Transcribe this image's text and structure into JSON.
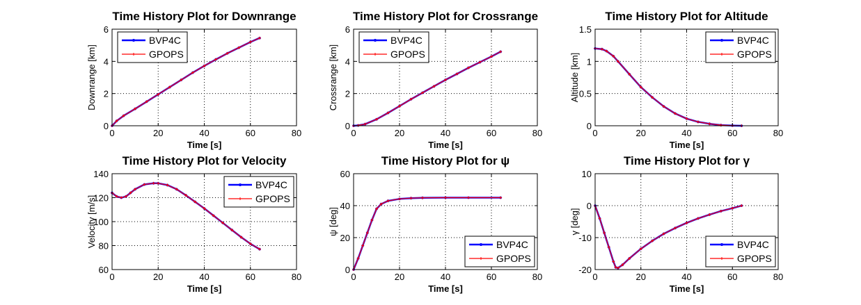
{
  "chart_data": [
    {
      "type": "line",
      "title": "Time History Plot for Downrange",
      "xlabel": "Time [s]",
      "ylabel": "Downrange [km]",
      "xlim": [
        0,
        80
      ],
      "ylim": [
        0,
        6
      ],
      "xticks": [
        "0",
        "20",
        "40",
        "60",
        "80"
      ],
      "yticks": [
        "0",
        "2",
        "4",
        "6"
      ],
      "grid": true,
      "legend_position": "top-left",
      "series": [
        {
          "name": "BVP4C",
          "color": "#0000ff",
          "marker": "dot",
          "x": [
            0,
            2,
            5,
            10,
            15,
            20,
            25,
            30,
            35,
            40,
            45,
            50,
            55,
            60,
            64
          ],
          "y": [
            0,
            0.3,
            0.62,
            1.05,
            1.5,
            1.95,
            2.4,
            2.85,
            3.3,
            3.72,
            4.12,
            4.5,
            4.85,
            5.2,
            5.45
          ]
        },
        {
          "name": "GPOPS",
          "color": "#ff0000",
          "marker": "plus",
          "x": [
            0,
            2,
            5,
            10,
            15,
            20,
            25,
            30,
            35,
            40,
            45,
            50,
            55,
            60,
            64
          ],
          "y": [
            0,
            0.3,
            0.62,
            1.05,
            1.5,
            1.95,
            2.4,
            2.85,
            3.3,
            3.72,
            4.12,
            4.5,
            4.85,
            5.2,
            5.45
          ]
        }
      ]
    },
    {
      "type": "line",
      "title": "Time History Plot for Crossrange",
      "xlabel": "Time [s]",
      "ylabel": "Crossrange [km]",
      "xlim": [
        0,
        80
      ],
      "ylim": [
        0,
        6
      ],
      "xticks": [
        "0",
        "20",
        "40",
        "60",
        "80"
      ],
      "yticks": [
        "0",
        "2",
        "4",
        "6"
      ],
      "grid": true,
      "legend_position": "top-left",
      "series": [
        {
          "name": "BVP4C",
          "color": "#0000ff",
          "marker": "dot",
          "x": [
            0,
            2,
            5,
            10,
            15,
            20,
            25,
            30,
            35,
            40,
            45,
            50,
            55,
            60,
            64
          ],
          "y": [
            0,
            0.02,
            0.1,
            0.4,
            0.8,
            1.22,
            1.65,
            2.05,
            2.45,
            2.85,
            3.22,
            3.6,
            3.95,
            4.3,
            4.6
          ]
        },
        {
          "name": "GPOPS",
          "color": "#ff0000",
          "marker": "plus",
          "x": [
            0,
            2,
            5,
            10,
            15,
            20,
            25,
            30,
            35,
            40,
            45,
            50,
            55,
            60,
            64
          ],
          "y": [
            0,
            0.02,
            0.1,
            0.4,
            0.8,
            1.22,
            1.65,
            2.05,
            2.45,
            2.85,
            3.22,
            3.6,
            3.95,
            4.3,
            4.6
          ]
        }
      ]
    },
    {
      "type": "line",
      "title": "Time History Plot for Altitude",
      "xlabel": "Time [s]",
      "ylabel": "Altitude [km]",
      "xlim": [
        0,
        80
      ],
      "ylim": [
        0,
        1.5
      ],
      "xticks": [
        "0",
        "20",
        "40",
        "60",
        "80"
      ],
      "yticks": [
        "0",
        "0.5",
        "1",
        "1.5"
      ],
      "grid": true,
      "legend_position": "top-right",
      "series": [
        {
          "name": "BVP4C",
          "color": "#0000ff",
          "marker": "dot",
          "x": [
            0,
            3,
            5,
            8,
            10,
            15,
            20,
            25,
            30,
            35,
            40,
            45,
            50,
            55,
            60,
            64
          ],
          "y": [
            1.2,
            1.19,
            1.16,
            1.08,
            1.0,
            0.8,
            0.6,
            0.44,
            0.3,
            0.19,
            0.11,
            0.06,
            0.03,
            0.01,
            0.003,
            0
          ]
        },
        {
          "name": "GPOPS",
          "color": "#ff0000",
          "marker": "plus",
          "x": [
            0,
            3,
            5,
            8,
            10,
            15,
            20,
            25,
            30,
            35,
            40,
            45,
            50,
            55,
            60,
            64
          ],
          "y": [
            1.2,
            1.19,
            1.16,
            1.08,
            1.0,
            0.8,
            0.6,
            0.44,
            0.3,
            0.19,
            0.11,
            0.06,
            0.03,
            0.01,
            0.003,
            0
          ]
        }
      ]
    },
    {
      "type": "line",
      "title": "Time History Plot for Velocity",
      "xlabel": "Time [s]",
      "ylabel": "Velocity [m/s]",
      "xlim": [
        0,
        80
      ],
      "ylim": [
        60,
        140
      ],
      "xticks": [
        "0",
        "20",
        "40",
        "60",
        "80"
      ],
      "yticks": [
        "60",
        "80",
        "100",
        "120",
        "140"
      ],
      "grid": true,
      "legend_position": "top-right",
      "series": [
        {
          "name": "BVP4C",
          "color": "#0000ff",
          "marker": "dot",
          "x": [
            0,
            2,
            4,
            6,
            8,
            10,
            14,
            18,
            20,
            24,
            28,
            32,
            36,
            40,
            44,
            48,
            52,
            56,
            60,
            64
          ],
          "y": [
            124,
            121,
            120,
            121,
            124,
            127,
            131,
            132,
            132,
            130.5,
            127,
            122,
            116.5,
            111,
            105,
            99,
            93,
            87,
            81.5,
            77
          ]
        },
        {
          "name": "GPOPS",
          "color": "#ff0000",
          "marker": "plus",
          "x": [
            0,
            2,
            4,
            6,
            8,
            10,
            14,
            18,
            20,
            24,
            28,
            32,
            36,
            40,
            44,
            48,
            52,
            56,
            60,
            64
          ],
          "y": [
            124,
            121,
            120,
            121,
            124,
            127,
            131,
            132,
            132,
            130.5,
            127,
            122,
            116.5,
            111,
            105,
            99,
            93,
            87,
            81.5,
            77
          ]
        }
      ]
    },
    {
      "type": "line",
      "title": "Time History Plot for ψ",
      "xlabel": "Time [s]",
      "ylabel": "ψ [deg]",
      "xlim": [
        0,
        80
      ],
      "ylim": [
        0,
        60
      ],
      "xticks": [
        "0",
        "20",
        "40",
        "60",
        "80"
      ],
      "yticks": [
        "0",
        "20",
        "40",
        "60"
      ],
      "grid": true,
      "legend_position": "bottom-right",
      "series": [
        {
          "name": "BVP4C",
          "color": "#0000ff",
          "marker": "dot",
          "x": [
            0,
            2,
            4,
            6,
            8,
            10,
            12,
            15,
            20,
            25,
            30,
            40,
            50,
            64
          ],
          "y": [
            0,
            7,
            15,
            23,
            31,
            38,
            41,
            43,
            44.2,
            44.7,
            44.9,
            45,
            45,
            45
          ]
        },
        {
          "name": "GPOPS",
          "color": "#ff0000",
          "marker": "plus",
          "x": [
            0,
            2,
            4,
            6,
            8,
            10,
            12,
            15,
            20,
            25,
            30,
            40,
            50,
            64
          ],
          "y": [
            0,
            7,
            15,
            23,
            31,
            38,
            41,
            43,
            44.2,
            44.7,
            44.9,
            45,
            45,
            45
          ]
        }
      ]
    },
    {
      "type": "line",
      "title": "Time History Plot for γ",
      "xlabel": "Time [s]",
      "ylabel": "γ [deg]",
      "xlim": [
        0,
        80
      ],
      "ylim": [
        -20,
        10
      ],
      "xticks": [
        "0",
        "20",
        "40",
        "60",
        "80"
      ],
      "yticks": [
        "-20",
        "-10",
        "0",
        "10"
      ],
      "grid": true,
      "legend_position": "bottom-right",
      "series": [
        {
          "name": "BVP4C",
          "color": "#0000ff",
          "marker": "dot",
          "x": [
            0,
            2,
            4,
            6,
            8,
            9,
            10,
            12,
            15,
            20,
            25,
            30,
            35,
            40,
            45,
            50,
            55,
            60,
            64
          ],
          "y": [
            0,
            -4,
            -8.5,
            -13,
            -17.5,
            -19.3,
            -19.5,
            -18.5,
            -16.5,
            -13.5,
            -11,
            -8.8,
            -7,
            -5.4,
            -4,
            -2.8,
            -1.7,
            -0.8,
            0
          ]
        },
        {
          "name": "GPOPS",
          "color": "#ff0000",
          "marker": "plus",
          "x": [
            0,
            2,
            4,
            6,
            8,
            9,
            10,
            12,
            15,
            20,
            25,
            30,
            35,
            40,
            45,
            50,
            55,
            60,
            64
          ],
          "y": [
            0,
            -4,
            -8.5,
            -13,
            -17.5,
            -19.3,
            -19.5,
            -18.5,
            -16.5,
            -13.5,
            -11,
            -8.8,
            -7,
            -5.4,
            -4,
            -2.8,
            -1.7,
            -0.8,
            0
          ]
        }
      ]
    }
  ]
}
